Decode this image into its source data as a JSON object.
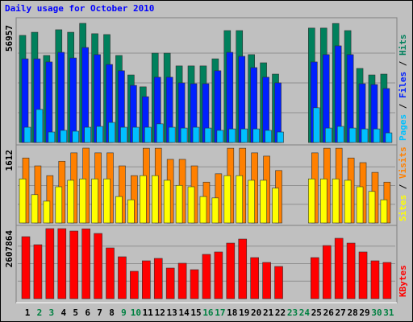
{
  "title": "Daily usage for October 2010",
  "legend_separator": " / ",
  "chart_data": [
    {
      "type": "bar",
      "ylim": [
        0,
        56957
      ],
      "series": [
        {
          "name": "Hits",
          "color": "#00805c",
          "values": [
            51200,
            52700,
            41600,
            53900,
            52700,
            56957,
            52000,
            51600,
            41600,
            32300,
            26600,
            42700,
            42700,
            36600,
            36600,
            36600,
            40000,
            53500,
            53500,
            42000,
            38100,
            32700,
            0,
            0,
            54700,
            54700,
            56900,
            53500,
            35400,
            32300,
            32700
          ]
        },
        {
          "name": "Files",
          "color": "#0020ff",
          "values": [
            40000,
            40000,
            38500,
            43100,
            40400,
            45400,
            42000,
            37300,
            34300,
            27300,
            21900,
            31200,
            31200,
            28500,
            28100,
            28100,
            34300,
            43100,
            41200,
            35800,
            31200,
            28500,
            0,
            0,
            38500,
            42000,
            46200,
            42000,
            28100,
            27700,
            25800
          ]
        },
        {
          "name": "Pages",
          "color": "#00c0ff",
          "values": [
            7300,
            15800,
            5000,
            5800,
            5400,
            7300,
            7700,
            9600,
            7300,
            7300,
            7300,
            8900,
            7300,
            6900,
            7300,
            6900,
            5800,
            6500,
            6500,
            6500,
            5800,
            5000,
            0,
            0,
            16600,
            6900,
            7700,
            6900,
            6500,
            6500,
            4600
          ]
        }
      ]
    },
    {
      "type": "bar",
      "ylim": [
        0,
        1612
      ],
      "series": [
        {
          "name": "Visits",
          "color": "#ff8000",
          "values": [
            1400,
            1230,
            1020,
            1330,
            1510,
            1612,
            1510,
            1510,
            1230,
            1020,
            1610,
            1610,
            1370,
            1370,
            1230,
            880,
            1060,
            1610,
            1610,
            1510,
            1440,
            1130,
            0,
            0,
            1510,
            1610,
            1610,
            1400,
            1300,
            1090,
            880
          ]
        },
        {
          "name": "Sites",
          "color": "#ffff00",
          "values": [
            950,
            610,
            470,
            780,
            920,
            950,
            950,
            950,
            570,
            500,
            1020,
            1020,
            920,
            810,
            780,
            570,
            540,
            1020,
            1020,
            920,
            920,
            750,
            0,
            0,
            950,
            950,
            950,
            920,
            780,
            680,
            500
          ]
        }
      ]
    },
    {
      "type": "bar",
      "ylim": [
        0,
        2607864
      ],
      "categories": [
        "1",
        "2",
        "3",
        "4",
        "5",
        "6",
        "7",
        "8",
        "9",
        "10",
        "11",
        "12",
        "13",
        "14",
        "15",
        "16",
        "17",
        "18",
        "19",
        "20",
        "21",
        "22",
        "23",
        "24",
        "25",
        "26",
        "27",
        "28",
        "29",
        "30",
        "31"
      ],
      "category_colors": [
        "#000000",
        "#008040",
        "#008040",
        "#000000",
        "#000000",
        "#000000",
        "#000000",
        "#000000",
        "#008040",
        "#008040",
        "#000000",
        "#000000",
        "#000000",
        "#000000",
        "#000000",
        "#008040",
        "#008040",
        "#000000",
        "#000000",
        "#000000",
        "#000000",
        "#000000",
        "#008040",
        "#008040",
        "#000000",
        "#000000",
        "#000000",
        "#000000",
        "#000000",
        "#008040",
        "#008040"
      ],
      "series": [
        {
          "name": "KBytes",
          "color": "#ff0000",
          "values": [
            2308000,
            2008000,
            2607864,
            2607000,
            2518000,
            2600000,
            2428000,
            1888000,
            1559000,
            1019000,
            1409000,
            1499000,
            1139000,
            1319000,
            1079000,
            1649000,
            1739000,
            2068000,
            2218000,
            1529000,
            1349000,
            1199000,
            0,
            0,
            1529000,
            1978000,
            2248000,
            2068000,
            1739000,
            1409000,
            1349000
          ]
        }
      ]
    }
  ]
}
